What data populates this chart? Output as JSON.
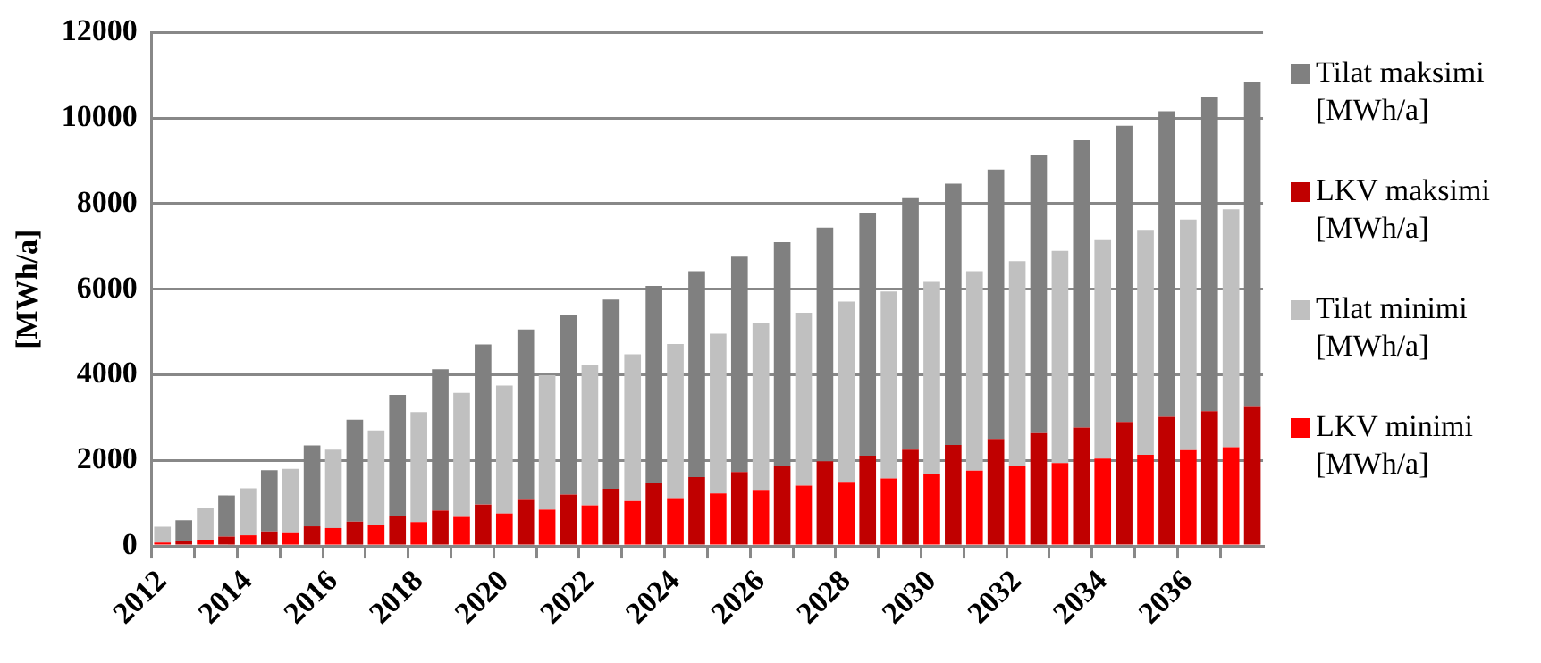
{
  "chart_data": {
    "type": "bar",
    "stacked": true,
    "ylabel": "[MWh/a]",
    "categories": [
      "2012",
      null,
      null,
      null,
      "2014",
      null,
      null,
      null,
      "2016",
      null,
      null,
      null,
      "2018",
      null,
      null,
      null,
      "2020",
      null,
      null,
      null,
      "2022",
      null,
      null,
      null,
      "2024",
      null,
      null,
      null,
      "2026",
      null,
      null,
      null,
      "2028",
      null,
      null,
      null,
      "2030",
      null,
      null,
      null,
      "2032",
      null,
      null,
      null,
      "2034",
      null,
      null,
      null,
      "2036",
      null,
      null,
      null
    ],
    "series": [
      {
        "name": "LKV minimi [MWh/a]",
        "color": "#ff0000",
        "values": [
          80,
          null,
          150,
          null,
          250,
          null,
          320,
          null,
          420,
          null,
          500,
          null,
          560,
          null,
          680,
          null,
          760,
          null,
          850,
          null,
          950,
          null,
          1050,
          null,
          1120,
          null,
          1230,
          null,
          1310,
          null,
          1410,
          null,
          1500,
          null,
          1580,
          null,
          1690,
          null,
          1760,
          null,
          1870,
          null,
          1940,
          null,
          2040,
          null,
          2130,
          null,
          2240,
          null,
          2310,
          null
        ]
      },
      {
        "name": "Tilat minimi [MWh/a]",
        "color": "#c0c0c0",
        "values": [
          370,
          null,
          750,
          null,
          1100,
          null,
          1480,
          null,
          1830,
          null,
          2200,
          null,
          2570,
          null,
          2900,
          null,
          2990,
          null,
          3140,
          null,
          3280,
          null,
          3430,
          null,
          3600,
          null,
          3730,
          null,
          3890,
          null,
          4040,
          null,
          4210,
          null,
          4370,
          null,
          4480,
          null,
          4660,
          null,
          4790,
          null,
          4960,
          null,
          5110,
          null,
          5260,
          null,
          5390,
          null,
          5560,
          null
        ]
      },
      {
        "name": "LKV maksimi [MWh/a]",
        "color": "#c00000",
        "values": [
          null,
          110,
          null,
          220,
          null,
          340,
          null,
          460,
          null,
          570,
          null,
          700,
          null,
          830,
          null,
          970,
          null,
          1080,
          null,
          1200,
          null,
          1340,
          null,
          1480,
          null,
          1610,
          null,
          1730,
          null,
          1870,
          null,
          1980,
          null,
          2110,
          null,
          2250,
          null,
          2360,
          null,
          2500,
          null,
          2640,
          null,
          2770,
          null,
          2900,
          null,
          3020,
          null,
          3150,
          null,
          3270
        ]
      },
      {
        "name": "Tilat maksimi [MWh/a]",
        "color": "#808080",
        "values": [
          null,
          490,
          null,
          960,
          null,
          1430,
          null,
          1890,
          null,
          2380,
          null,
          2830,
          null,
          3300,
          null,
          3740,
          null,
          3980,
          null,
          4200,
          null,
          4420,
          null,
          4600,
          null,
          4810,
          null,
          5030,
          null,
          5230,
          null,
          5460,
          null,
          5680,
          null,
          5880,
          null,
          6110,
          null,
          6300,
          null,
          6500,
          null,
          6710,
          null,
          6920,
          null,
          7140,
          null,
          7350,
          null,
          7570
        ]
      }
    ],
    "ylim": [
      0,
      12000
    ],
    "yticks": [
      0,
      2000,
      4000,
      6000,
      8000,
      10000,
      12000
    ],
    "grid": "y",
    "legend": "right"
  }
}
